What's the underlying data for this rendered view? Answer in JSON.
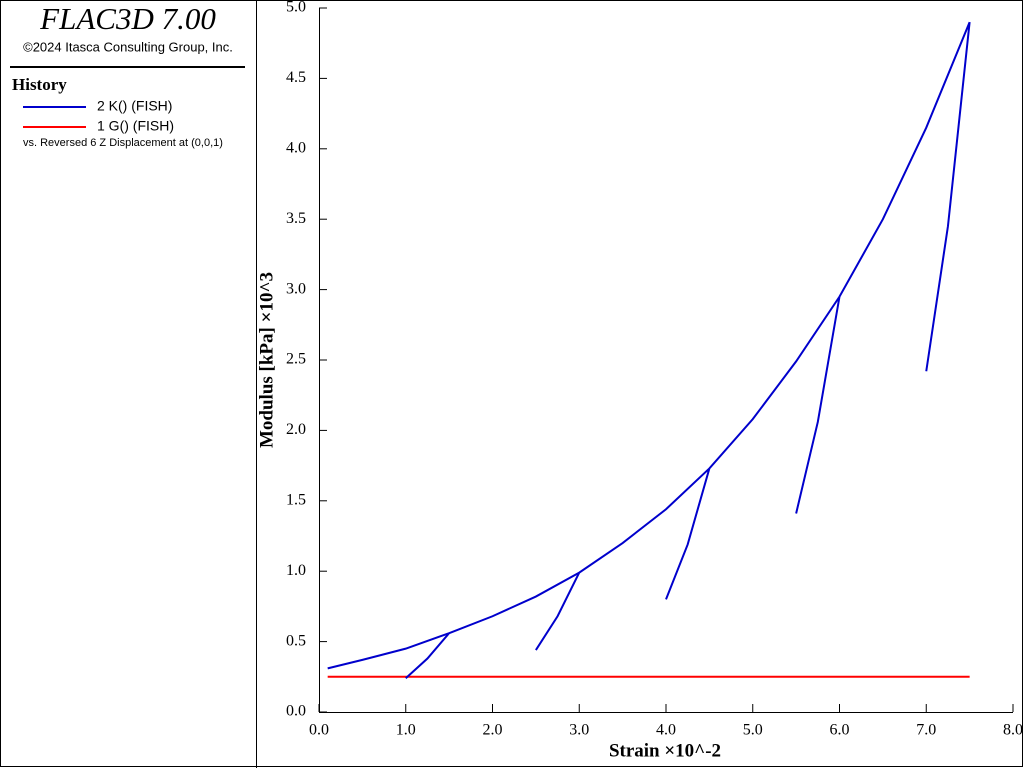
{
  "chart_data": {
    "type": "line",
    "header_title": "FLAC3D 7.00",
    "copyright": "©2024 Itasca Consulting Group, Inc.",
    "legend_title": "History",
    "legend_note": "vs. Reversed 6 Z Displacement at (0,0,1)",
    "xlabel": "Strain ×10^-2",
    "ylabel": "Modulus [kPa] ×10^3",
    "xlim": [
      0,
      8
    ],
    "ylim": [
      0,
      5
    ],
    "xticks": [
      {
        "value": 0,
        "label": "0.0"
      },
      {
        "value": 1,
        "label": "1.0"
      },
      {
        "value": 2,
        "label": "2.0"
      },
      {
        "value": 3,
        "label": "3.0"
      },
      {
        "value": 4,
        "label": "4.0"
      },
      {
        "value": 5,
        "label": "5.0"
      },
      {
        "value": 6,
        "label": "6.0"
      },
      {
        "value": 7,
        "label": "7.0"
      },
      {
        "value": 8,
        "label": "8.0"
      }
    ],
    "yticks": [
      {
        "value": 0,
        "label": "0.0"
      },
      {
        "value": 0.5,
        "label": "0.5"
      },
      {
        "value": 1,
        "label": "1.0"
      },
      {
        "value": 1.5,
        "label": "1.5"
      },
      {
        "value": 2,
        "label": "2.0"
      },
      {
        "value": 2.5,
        "label": "2.5"
      },
      {
        "value": 3,
        "label": "3.0"
      },
      {
        "value": 3.5,
        "label": "3.5"
      },
      {
        "value": 4,
        "label": "4.0"
      },
      {
        "value": 4.5,
        "label": "4.5"
      },
      {
        "value": 5,
        "label": "5.0"
      }
    ],
    "series": [
      {
        "name": "2 K() (FISH)",
        "color": "#0000cc",
        "x": [
          0.1,
          0.5,
          1.0,
          1.5,
          2.0,
          2.5,
          3.0,
          3.5,
          4.0,
          4.5,
          5.0,
          5.5,
          6.0,
          6.5,
          7.0,
          7.5,
          null,
          1.5,
          1.25,
          1.0,
          null,
          3.0,
          2.75,
          2.5,
          null,
          4.5,
          4.25,
          4.0,
          null,
          6.0,
          5.75,
          5.5,
          null,
          7.5,
          7.25,
          7.0
        ],
        "values": [
          0.31,
          0.37,
          0.45,
          0.56,
          0.68,
          0.82,
          0.99,
          1.2,
          1.44,
          1.73,
          2.08,
          2.49,
          2.95,
          3.5,
          4.15,
          4.9,
          null,
          0.56,
          0.38,
          0.24,
          null,
          0.99,
          0.68,
          0.44,
          null,
          1.73,
          1.19,
          0.8,
          null,
          2.95,
          2.06,
          1.41,
          null,
          4.9,
          3.45,
          2.42
        ]
      },
      {
        "name": "1 G() (FISH)",
        "color": "#ff0000",
        "x": [
          0.1,
          7.5
        ],
        "values": [
          0.25,
          0.25
        ]
      }
    ]
  }
}
